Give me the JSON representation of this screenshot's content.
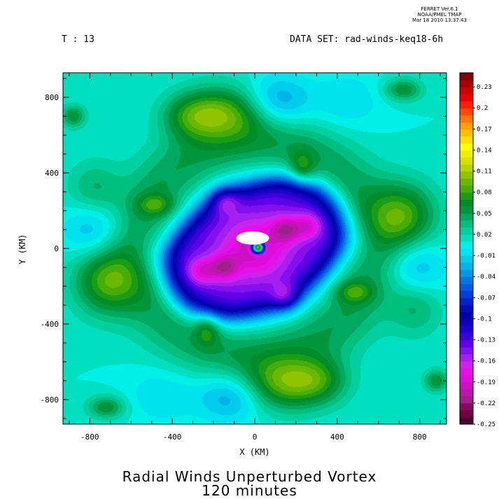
{
  "header": {
    "software": "FERRET  Ver.6.1",
    "org": "NOAA/PMEL TMAP",
    "timestamp": "Mar 18 2010 13:37:43",
    "time_step": "T : 13",
    "dataset": "DATA SET: rad-winds-keq18-6h"
  },
  "chart_data": {
    "type": "heatmap",
    "title": "Radial Winds Unperturbed Vortex",
    "subtitle": "120 minutes",
    "xlabel": "X (KM)",
    "ylabel": "Y (KM)",
    "xlim": [
      -930,
      930
    ],
    "ylim": [
      -930,
      930
    ],
    "x_ticks": [
      -800,
      -400,
      0,
      400,
      800
    ],
    "y_ticks": [
      -800,
      -400,
      0,
      400,
      800
    ],
    "grid": false,
    "colorbar": {
      "placement": "right",
      "min": -0.25,
      "max": 0.25,
      "step": 0.01,
      "labels": [
        "0.23",
        "0.2",
        "0.17",
        "0.14",
        "0.11",
        "0.08",
        "0.05",
        "0.02",
        "-0.01",
        "-0.04",
        "-0.07",
        "-0.1",
        "-0.13",
        "-0.16",
        "-0.19",
        "-0.22",
        "-0.25"
      ],
      "colors": [
        "#4b0032",
        "#6b0046",
        "#870a5e",
        "#a0208a",
        "#b51aa8",
        "#cc10c2",
        "#dd0ed9",
        "#e810ea",
        "#cc22ee",
        "#a520ee",
        "#8410ee",
        "#6000e8",
        "#3c00da",
        "#2000cc",
        "#1000bb",
        "#0000a8",
        "#0010b8",
        "#0024cc",
        "#0040d8",
        "#005ce0",
        "#0078e0",
        "#0098e4",
        "#00b4e8",
        "#00ccec",
        "#00e2ee",
        "#00f0e8",
        "#00e0c0",
        "#00d0a0",
        "#00c080",
        "#00a860",
        "#00963c",
        "#008c28",
        "#1a9c14",
        "#48ac08",
        "#6cb800",
        "#90c400",
        "#b4d400",
        "#d4e200",
        "#eef000",
        "#ffff00",
        "#ffe000",
        "#ffc000",
        "#ffa000",
        "#ff7800",
        "#ff4c00",
        "#ff1e00",
        "#ec0000",
        "#cc0000",
        "#a80000",
        "#860000"
      ]
    },
    "field": {
      "description": "radial wind component around vortex, negative (inflow) near centre with four-armed pattern, positive lobes at larger radius",
      "background": 0.01,
      "core_arm_amplitude": -0.15,
      "ring_amplitude": 0.04,
      "features": [
        {
          "x": -150,
          "y": 720,
          "amp": 0.07,
          "rx": 200,
          "ry": 140
        },
        {
          "x": 140,
          "y": -720,
          "amp": 0.07,
          "rx": 200,
          "ry": 140
        },
        {
          "x": -720,
          "y": -170,
          "amp": 0.07,
          "rx": 160,
          "ry": 180
        },
        {
          "x": 720,
          "y": 170,
          "amp": 0.07,
          "rx": 160,
          "ry": 180
        },
        {
          "x": -320,
          "y": 700,
          "amp": 0.04,
          "rx": 140,
          "ry": 120
        },
        {
          "x": 320,
          "y": -700,
          "amp": 0.04,
          "rx": 140,
          "ry": 120
        },
        {
          "x": -780,
          "y": 300,
          "amp": 0.035,
          "rx": 130,
          "ry": 160
        },
        {
          "x": 780,
          "y": -300,
          "amp": 0.035,
          "rx": 130,
          "ry": 160
        },
        {
          "x": -880,
          "y": 700,
          "amp": 0.05,
          "rx": 60,
          "ry": 60
        },
        {
          "x": 880,
          "y": -700,
          "amp": 0.05,
          "rx": 60,
          "ry": 60
        },
        {
          "x": -720,
          "y": -840,
          "amp": 0.05,
          "rx": 90,
          "ry": 60
        },
        {
          "x": 720,
          "y": 840,
          "amp": 0.05,
          "rx": 90,
          "ry": 60
        },
        {
          "x": 110,
          "y": 780,
          "amp": -0.045,
          "rx": 160,
          "ry": 130
        },
        {
          "x": -110,
          "y": -780,
          "amp": -0.045,
          "rx": 160,
          "ry": 130
        },
        {
          "x": 780,
          "y": -110,
          "amp": -0.04,
          "rx": 140,
          "ry": 160
        },
        {
          "x": -780,
          "y": 110,
          "amp": -0.04,
          "rx": 140,
          "ry": 160
        },
        {
          "x": 450,
          "y": 780,
          "amp": -0.02,
          "rx": 160,
          "ry": 140
        },
        {
          "x": -450,
          "y": -780,
          "amp": -0.02,
          "rx": 160,
          "ry": 140
        },
        {
          "x": -480,
          "y": 230,
          "amp": 0.04,
          "rx": 90,
          "ry": 60
        },
        {
          "x": 480,
          "y": -230,
          "amp": 0.04,
          "rx": 90,
          "ry": 60
        },
        {
          "x": -230,
          "y": -420,
          "amp": 0.045,
          "rx": 60,
          "ry": 90
        },
        {
          "x": 230,
          "y": 420,
          "amp": 0.045,
          "rx": 60,
          "ry": 90
        },
        {
          "x": -470,
          "y": -40,
          "amp": -0.02,
          "rx": 120,
          "ry": 120
        },
        {
          "x": 470,
          "y": 40,
          "amp": -0.02,
          "rx": 120,
          "ry": 120
        }
      ],
      "minima": [
        {
          "x": -150,
          "y": 260,
          "amp": -0.05
        },
        {
          "x": 150,
          "y": -260,
          "amp": -0.05
        },
        {
          "x": 260,
          "y": 120,
          "amp": -0.05
        },
        {
          "x": -260,
          "y": -120,
          "amp": -0.05
        },
        {
          "x": 150,
          "y": 100,
          "amp": -0.06
        },
        {
          "x": -150,
          "y": -100,
          "amp": -0.06
        }
      ],
      "eye": {
        "x": 15,
        "y": 5,
        "radius": 28
      },
      "missing_patch": {
        "x": -10,
        "y": 55,
        "rx": 80,
        "ry": 35
      }
    }
  }
}
